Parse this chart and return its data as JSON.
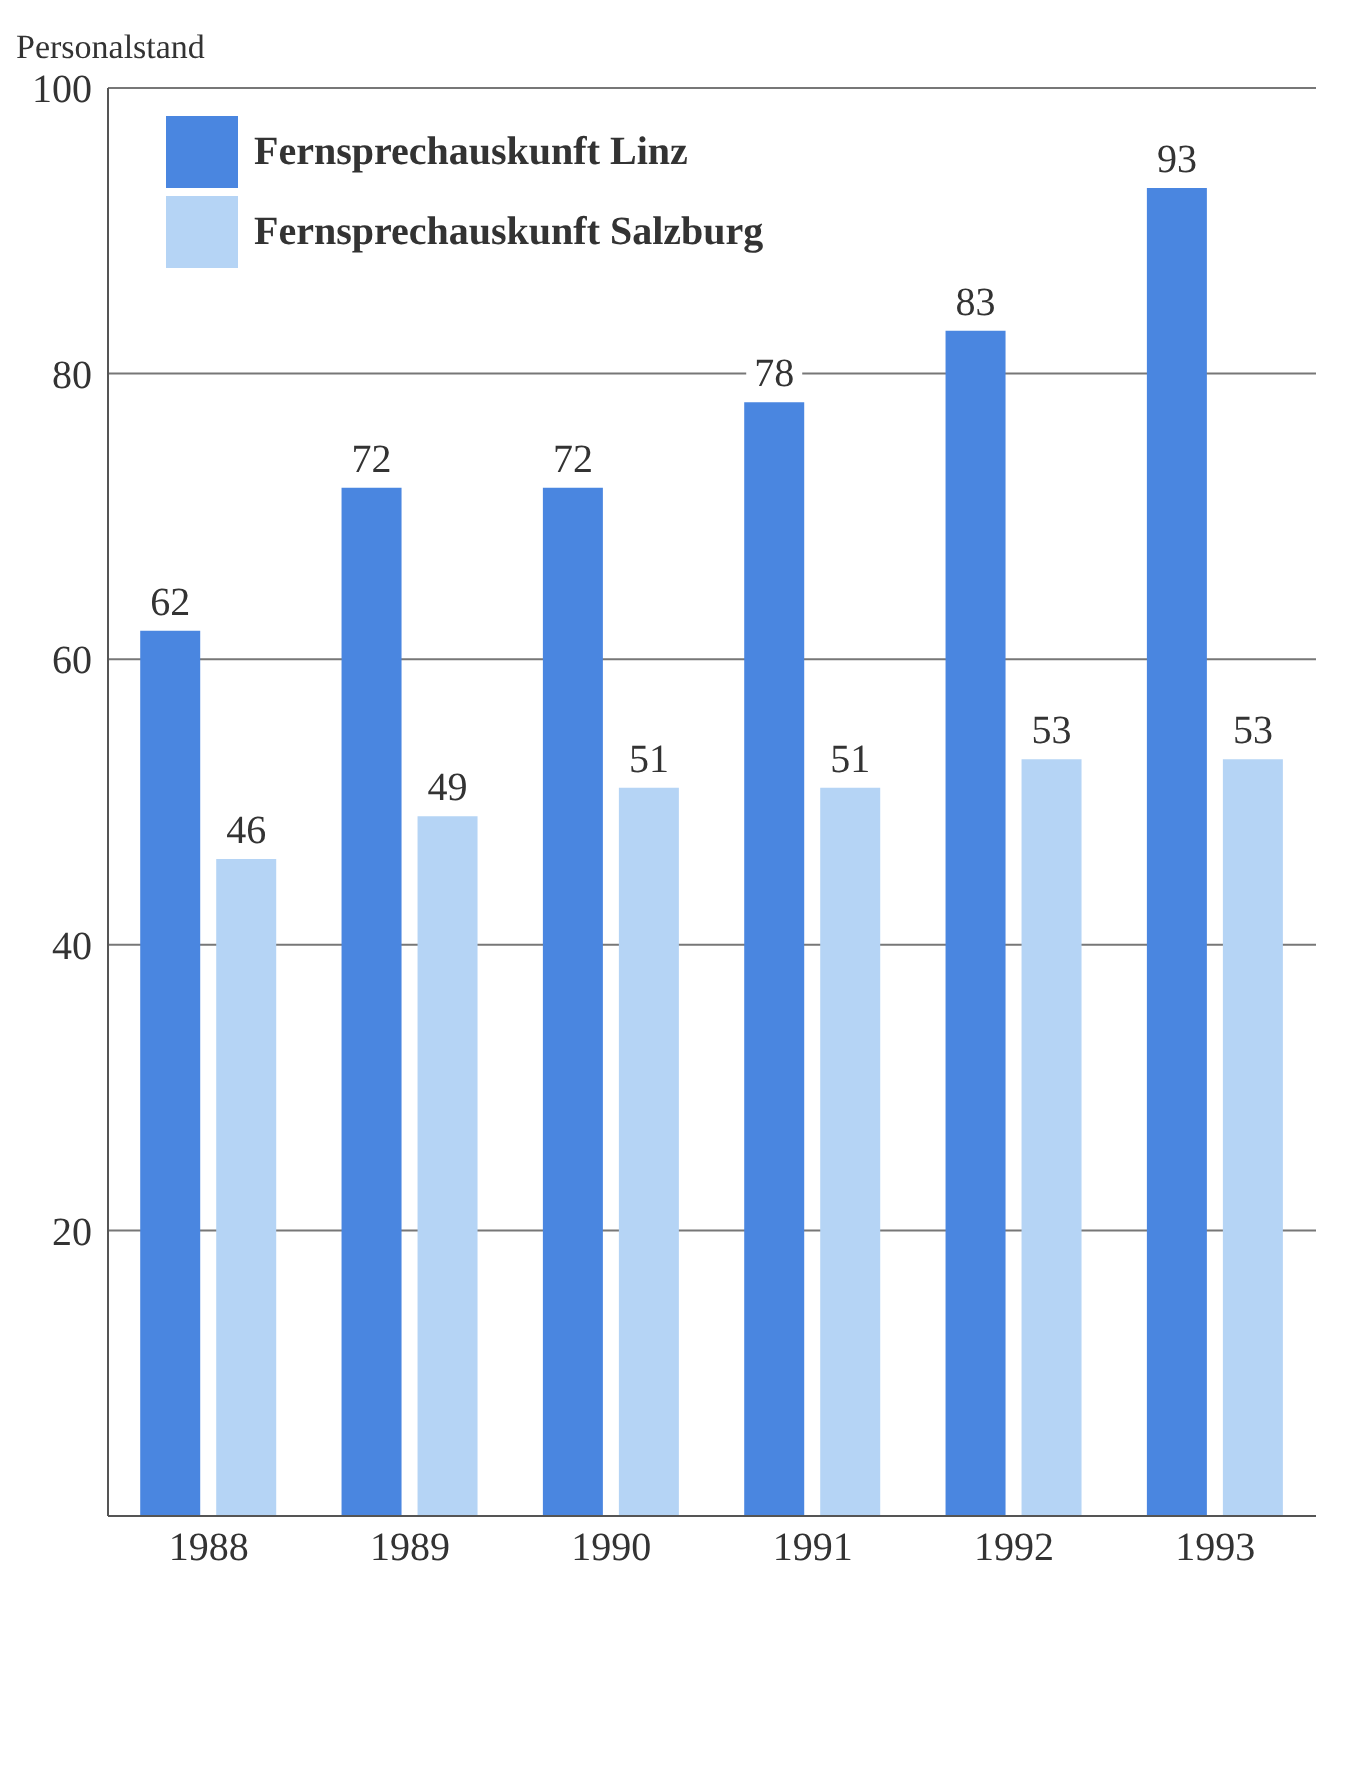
{
  "chart_data": {
    "type": "bar",
    "ylabel": "Personalstand",
    "categories": [
      "1988",
      "1989",
      "1990",
      "1991",
      "1992",
      "1993"
    ],
    "series": [
      {
        "name": "Fernsprechauskunft Linz",
        "color": "#4a86e0",
        "values": [
          62,
          72,
          72,
          78,
          83,
          93
        ]
      },
      {
        "name": "Fernsprechauskunft Salzburg",
        "color": "#b5d4f5",
        "values": [
          46,
          49,
          51,
          51,
          53,
          53
        ]
      }
    ],
    "ylim": [
      0,
      100
    ],
    "yticks": [
      20,
      40,
      60,
      80,
      100
    ],
    "grid": "y",
    "legend": "top left",
    "data_labels": true
  }
}
